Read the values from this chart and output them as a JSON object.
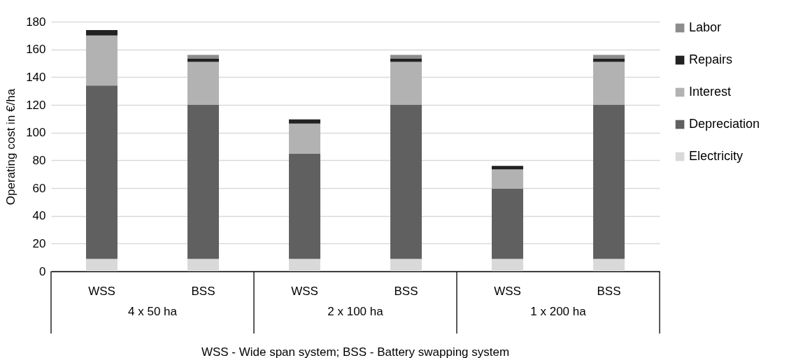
{
  "chart_data": {
    "type": "bar",
    "stacked": true,
    "ylabel": "Operating cost in €/ha",
    "categories": [
      "WSS",
      "BSS",
      "WSS",
      "BSS",
      "WSS",
      "BSS"
    ],
    "series": [
      {
        "name": "Electricity",
        "color": "#d9d9d9",
        "values": [
          9,
          9,
          9,
          9,
          9,
          9
        ]
      },
      {
        "name": "Depreciation",
        "color": "#606060",
        "values": [
          125,
          111,
          76,
          111,
          50.5,
          111
        ]
      },
      {
        "name": "Interest",
        "color": "#b2b2b2",
        "values": [
          36,
          31,
          21.5,
          31,
          14,
          31
        ]
      },
      {
        "name": "Repairs",
        "color": "#222222",
        "values": [
          4,
          2.5,
          3,
          2.5,
          2.5,
          2.5
        ]
      },
      {
        "name": "Labor",
        "color": "#8c8c8c",
        "values": [
          0,
          2.5,
          0,
          2.5,
          0,
          2.5
        ]
      }
    ],
    "ylim": [
      0,
      180
    ],
    "yticks": [
      0,
      20,
      40,
      60,
      80,
      100,
      120,
      140,
      160,
      180
    ],
    "grid": "y",
    "legend": "right",
    "annotations": [
      "4 x 50 ha",
      "2 x 100 ha",
      "1 x 200 ha",
      "WSS - Wide span system; BSS - Battery swapping system"
    ]
  }
}
